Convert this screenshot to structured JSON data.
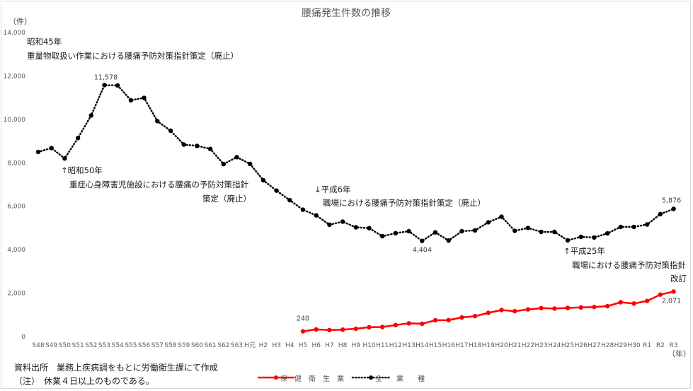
{
  "chart_data": {
    "type": "line",
    "title": "腰痛発生件数の推移",
    "y_unit_label": "（件）",
    "x_unit_label": "（年）",
    "ylim": [
      0,
      14000
    ],
    "y_ticks": [
      "0",
      "2,000",
      "4,000",
      "6,000",
      "8,000",
      "10,000",
      "12,000",
      "14,000"
    ],
    "grid": false,
    "legend_position": "bottom",
    "categories": [
      "S48",
      "S49",
      "S50",
      "S51",
      "S52",
      "S53",
      "S54",
      "S55",
      "S56",
      "S57",
      "S58",
      "S59",
      "S60",
      "S61",
      "S62",
      "S63",
      "H元",
      "H2",
      "H3",
      "H4",
      "H5",
      "H6",
      "H7",
      "H8",
      "H9",
      "H10",
      "H11",
      "H12",
      "H13",
      "H14",
      "H15",
      "H16",
      "H17",
      "H18",
      "H19",
      "H20",
      "H21",
      "H22",
      "H23",
      "H24",
      "H25",
      "H26",
      "H27",
      "H28",
      "H29",
      "H30",
      "R1",
      "R2",
      "R3"
    ],
    "series": [
      {
        "name": "全　　業　　種",
        "color": "#000000",
        "style": "dotted",
        "values": [
          8500,
          8680,
          8200,
          9140,
          10180,
          11578,
          11560,
          10880,
          10990,
          9920,
          9480,
          8840,
          8780,
          8640,
          7940,
          8260,
          7950,
          7200,
          6720,
          6280,
          5840,
          5580,
          5150,
          5290,
          5030,
          4990,
          4620,
          4760,
          4850,
          4404,
          4800,
          4420,
          4850,
          4890,
          5260,
          5520,
          4870,
          5000,
          4820,
          4820,
          4430,
          4590,
          4560,
          4750,
          5050,
          5050,
          5160,
          5640,
          5876
        ]
      },
      {
        "name": "保　健　衛　生　業",
        "color": "#ff0000",
        "style": "solid",
        "values": [
          null,
          null,
          null,
          null,
          null,
          null,
          null,
          null,
          null,
          null,
          null,
          null,
          null,
          null,
          null,
          null,
          null,
          null,
          null,
          null,
          240,
          330,
          300,
          320,
          360,
          430,
          440,
          530,
          610,
          590,
          750,
          760,
          880,
          940,
          1090,
          1220,
          1170,
          1250,
          1310,
          1290,
          1320,
          1340,
          1360,
          1400,
          1580,
          1520,
          1640,
          1930,
          2071
        ]
      }
    ],
    "data_labels": [
      {
        "series": 0,
        "category": "S53",
        "text": "11,578"
      },
      {
        "series": 0,
        "category": "H14",
        "text": "4,404"
      },
      {
        "series": 0,
        "category": "R3",
        "text": "5,876"
      },
      {
        "series": 1,
        "category": "H5",
        "text": "240"
      },
      {
        "series": 1,
        "category": "R3",
        "text": "2,071"
      }
    ],
    "annotations": [
      {
        "lines": [
          "昭和45年",
          "重量物取扱い作業における腰痛予防対策指針策定（廃止）"
        ]
      },
      {
        "lines": [
          "↑昭和50年",
          "重症心身障害児施設における腰痛の予防対策指針",
          "策定（廃止）"
        ]
      },
      {
        "lines": [
          "↓平成6年",
          "職場における腰痛予防対策指針策定（廃止）"
        ]
      },
      {
        "lines": [
          "↑平成25年",
          "職場における腰痛予防対策指針",
          "改訂"
        ]
      }
    ]
  },
  "notes": {
    "source": "資料出所　業務上疾病調をもとに労働衛生課にて作成",
    "note": "（注）　休業４日以上のものである。"
  }
}
